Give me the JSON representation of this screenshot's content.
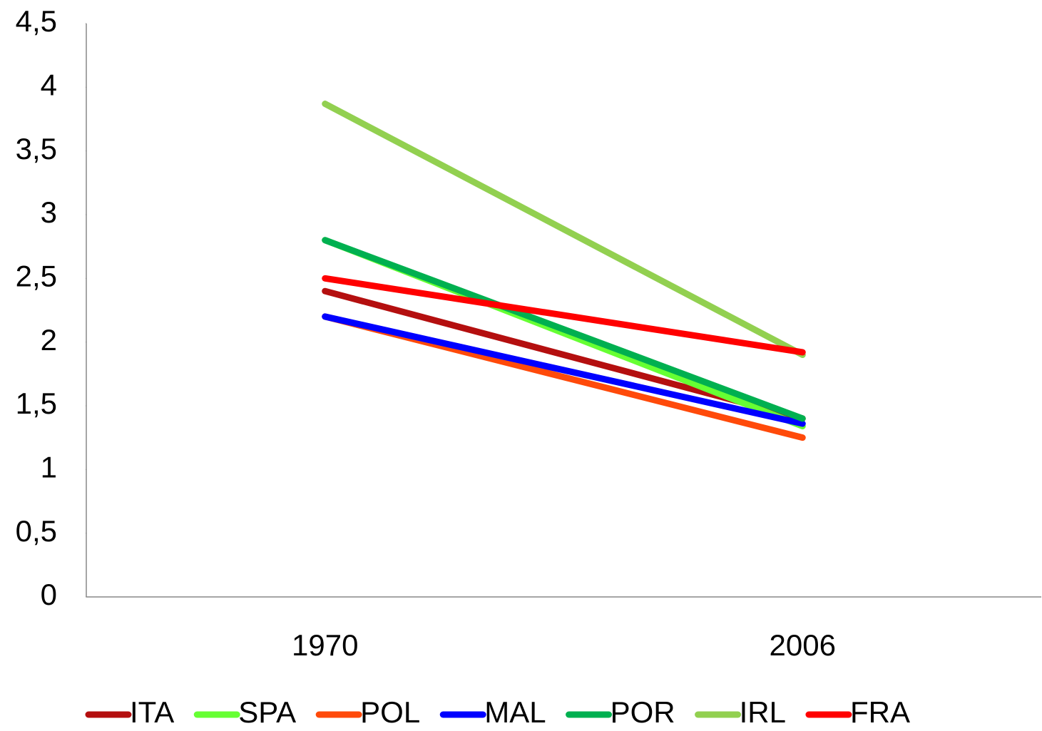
{
  "chart_data": {
    "type": "line",
    "categories": [
      "1970",
      "2006"
    ],
    "series": [
      {
        "name": "ITA",
        "color": "#b40f0f",
        "values": [
          2.4,
          1.4
        ]
      },
      {
        "name": "SPA",
        "color": "#66ff33",
        "values": [
          2.8,
          1.34
        ]
      },
      {
        "name": "POL",
        "color": "#ff4a0a",
        "values": [
          2.2,
          1.25
        ]
      },
      {
        "name": "MAL",
        "color": "#0000ff",
        "values": [
          2.2,
          1.36
        ]
      },
      {
        "name": "POR",
        "color": "#00b050",
        "values": [
          2.8,
          1.4
        ]
      },
      {
        "name": "IRL",
        "color": "#92d050",
        "values": [
          3.87,
          1.9
        ]
      },
      {
        "name": "FRA",
        "color": "#ff0000",
        "values": [
          2.5,
          1.92
        ]
      }
    ],
    "ylim": [
      0,
      4.5
    ],
    "yticks": [
      0,
      {
        "value": 0.5,
        "label": "0,5"
      },
      1,
      {
        "value": 1.5,
        "label": "1,5"
      },
      2,
      {
        "value": 2.5,
        "label": "2,5"
      },
      3,
      {
        "value": 3.5,
        "label": "3,5"
      },
      4,
      {
        "value": 4.5,
        "label": "4,5"
      }
    ],
    "legend": "bottom"
  }
}
